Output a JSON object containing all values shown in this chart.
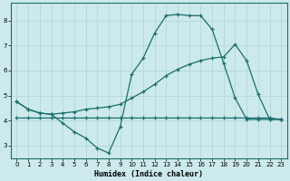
{
  "xlabel": "Humidex (Indice chaleur)",
  "bg_color": "#cce9ec",
  "grid_color": "#aed4d8",
  "line_color": "#1a6e6a",
  "x_min": -0.5,
  "x_max": 23.5,
  "y_min": 2.5,
  "y_max": 8.7,
  "yticks": [
    3,
    4,
    5,
    6,
    7,
    8
  ],
  "xticks": [
    0,
    1,
    2,
    3,
    4,
    5,
    6,
    7,
    8,
    9,
    10,
    11,
    12,
    13,
    14,
    15,
    16,
    17,
    18,
    19,
    20,
    21,
    22,
    23
  ],
  "line1_x": [
    0,
    1,
    2,
    3,
    4,
    5,
    6,
    7,
    8,
    9,
    10,
    11,
    12,
    13,
    14,
    15,
    16,
    17,
    18,
    19,
    20,
    21,
    22,
    23
  ],
  "line1_y": [
    4.75,
    4.45,
    4.3,
    4.25,
    3.9,
    3.55,
    3.3,
    2.9,
    2.7,
    3.75,
    5.85,
    6.5,
    7.5,
    8.2,
    8.25,
    8.2,
    8.2,
    7.65,
    6.3,
    4.9,
    4.05,
    4.05,
    4.05,
    4.05
  ],
  "line2_x": [
    0,
    1,
    2,
    3,
    4,
    5,
    6,
    7,
    8,
    9,
    10,
    11,
    12,
    13,
    14,
    15,
    16,
    17,
    18,
    19,
    20,
    21,
    22,
    23
  ],
  "line2_y": [
    4.1,
    4.1,
    4.1,
    4.1,
    4.1,
    4.1,
    4.1,
    4.1,
    4.1,
    4.1,
    4.1,
    4.1,
    4.1,
    4.1,
    4.1,
    4.1,
    4.1,
    4.1,
    4.1,
    4.1,
    4.1,
    4.1,
    4.1,
    4.05
  ],
  "line3_x": [
    0,
    1,
    2,
    3,
    4,
    5,
    6,
    7,
    8,
    9,
    10,
    11,
    12,
    13,
    14,
    15,
    16,
    17,
    18,
    19,
    20,
    21,
    22,
    23
  ],
  "line3_y": [
    4.75,
    4.45,
    4.3,
    4.25,
    4.3,
    4.35,
    4.45,
    4.5,
    4.55,
    4.65,
    4.9,
    5.15,
    5.45,
    5.8,
    6.05,
    6.25,
    6.4,
    6.5,
    6.55,
    7.05,
    6.4,
    5.05,
    4.05,
    4.05
  ]
}
